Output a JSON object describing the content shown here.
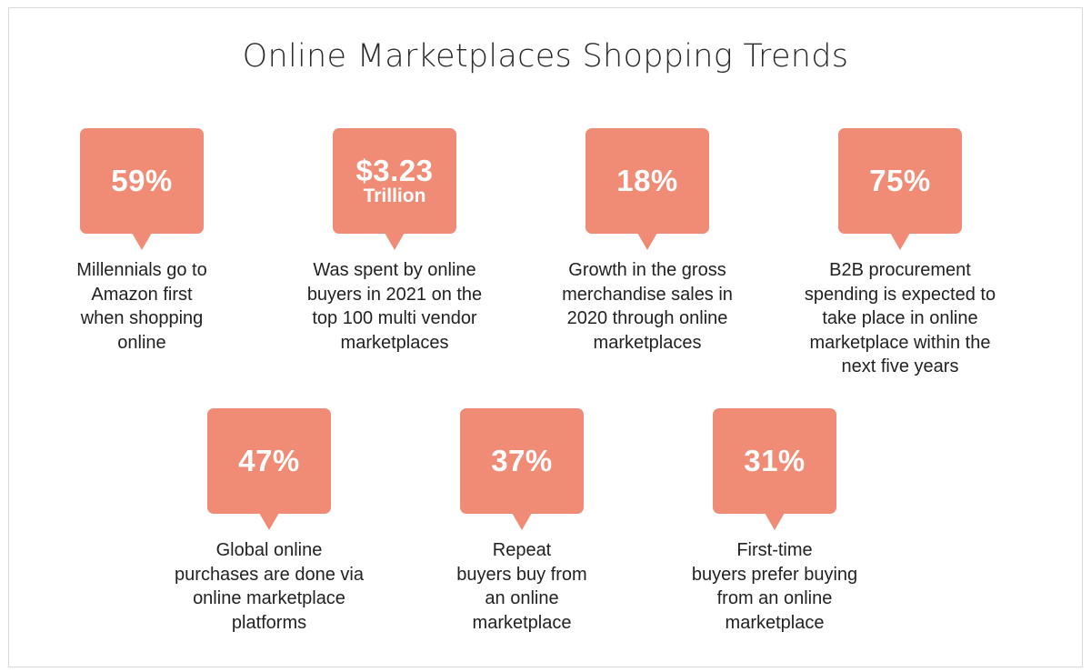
{
  "title": "Online Marketplaces Shopping Trends",
  "colors": {
    "bubble": "#f08c75",
    "bubble_text": "#ffffff",
    "text": "#222222",
    "frame": "#d9d9d9"
  },
  "stats": [
    {
      "value": "59%",
      "unit": "",
      "description": [
        "Millennials go to",
        "Amazon first",
        "when shopping",
        "online"
      ]
    },
    {
      "value": "$3.23",
      "unit": "Trillion",
      "description": [
        "Was spent by online",
        "buyers in 2021 on the",
        "top 100 multi vendor",
        "marketplaces"
      ]
    },
    {
      "value": "18%",
      "unit": "",
      "description": [
        "Growth in the gross",
        "merchandise sales in",
        "2020 through online",
        "marketplaces"
      ]
    },
    {
      "value": "75%",
      "unit": "",
      "description": [
        "B2B procurement",
        "spending is expected to",
        "take place in online",
        "marketplace within the",
        "next five years"
      ]
    },
    {
      "value": "47%",
      "unit": "",
      "description": [
        "Global online",
        "purchases are done via",
        "online marketplace",
        "platforms"
      ]
    },
    {
      "value": "37%",
      "unit": "",
      "description": [
        "Repeat",
        "buyers buy from",
        "an online",
        "marketplace"
      ]
    },
    {
      "value": "31%",
      "unit": "",
      "description": [
        "First-time",
        "buyers prefer buying",
        "from an online",
        "marketplace"
      ]
    }
  ]
}
